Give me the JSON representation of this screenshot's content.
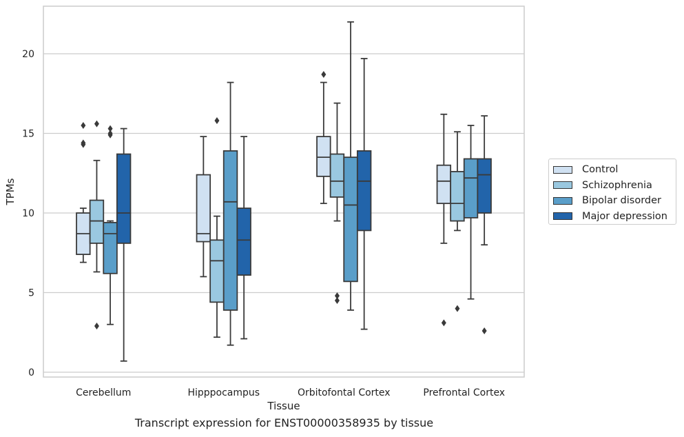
{
  "chart_data": {
    "type": "box",
    "xlabel": "Tissue",
    "ylabel": "TPMs",
    "caption": "Transcript expression for ENST00000358935 by tissue",
    "ylim": [
      -0.3,
      22.9
    ],
    "yticks": [
      0,
      5,
      10,
      15,
      20
    ],
    "grid": "horizontal",
    "legend_position": "right-center",
    "categories": [
      "Cerebellum",
      "Hipppocampus",
      "Orbitofontal Cortex",
      "Prefrontal Cortex"
    ],
    "series": [
      {
        "name": "Control",
        "color": "#d0e1f2",
        "boxes": [
          {
            "whislo": 6.9,
            "q1": 7.4,
            "med": 8.7,
            "q3": 10.0,
            "whishi": 10.3,
            "fliers": [
              14.3,
              14.4,
              15.5
            ]
          },
          {
            "whislo": 6.0,
            "q1": 8.2,
            "med": 8.7,
            "q3": 12.4,
            "whishi": 14.8,
            "fliers": []
          },
          {
            "whislo": 10.6,
            "q1": 12.3,
            "med": 13.5,
            "q3": 14.8,
            "whishi": 18.2,
            "fliers": [
              18.7
            ]
          },
          {
            "whislo": 8.1,
            "q1": 10.6,
            "med": 12.0,
            "q3": 13.0,
            "whishi": 16.2,
            "fliers": [
              3.1
            ]
          }
        ]
      },
      {
        "name": "Schizophrenia",
        "color": "#9ac8e0",
        "boxes": [
          {
            "whislo": 6.3,
            "q1": 8.1,
            "med": 9.5,
            "q3": 10.8,
            "whishi": 13.3,
            "fliers": [
              2.9,
              15.6
            ]
          },
          {
            "whislo": 2.2,
            "q1": 4.4,
            "med": 7.0,
            "q3": 8.3,
            "whishi": 9.8,
            "fliers": [
              15.8
            ]
          },
          {
            "whislo": 9.5,
            "q1": 11.0,
            "med": 12.0,
            "q3": 13.7,
            "whishi": 16.9,
            "fliers": [
              4.5,
              4.8
            ]
          },
          {
            "whislo": 8.9,
            "q1": 9.5,
            "med": 10.6,
            "q3": 12.6,
            "whishi": 15.1,
            "fliers": [
              4.0
            ]
          }
        ]
      },
      {
        "name": "Bipolar disorder",
        "color": "#5a9ec9",
        "boxes": [
          {
            "whislo": 3.0,
            "q1": 6.2,
            "med": 8.7,
            "q3": 9.4,
            "whishi": 9.5,
            "fliers": [
              14.9,
              15.0,
              15.3
            ]
          },
          {
            "whislo": 1.7,
            "q1": 3.9,
            "med": 10.7,
            "q3": 13.9,
            "whishi": 18.2,
            "fliers": []
          },
          {
            "whislo": 3.9,
            "q1": 5.7,
            "med": 10.5,
            "q3": 13.5,
            "whishi": 22.0,
            "fliers": []
          },
          {
            "whislo": 4.6,
            "q1": 9.7,
            "med": 12.2,
            "q3": 13.4,
            "whishi": 15.5,
            "fliers": []
          }
        ]
      },
      {
        "name": "Major depression",
        "color": "#2264aa",
        "boxes": [
          {
            "whislo": 0.7,
            "q1": 8.1,
            "med": 10.0,
            "q3": 13.7,
            "whishi": 15.3,
            "fliers": []
          },
          {
            "whislo": 2.1,
            "q1": 6.1,
            "med": 8.3,
            "q3": 10.3,
            "whishi": 14.8,
            "fliers": []
          },
          {
            "whislo": 2.7,
            "q1": 8.9,
            "med": 12.0,
            "q3": 13.9,
            "whishi": 19.7,
            "fliers": []
          },
          {
            "whislo": 8.0,
            "q1": 10.0,
            "med": 12.4,
            "q3": 13.4,
            "whishi": 16.1,
            "fliers": [
              2.6
            ]
          }
        ]
      }
    ]
  }
}
